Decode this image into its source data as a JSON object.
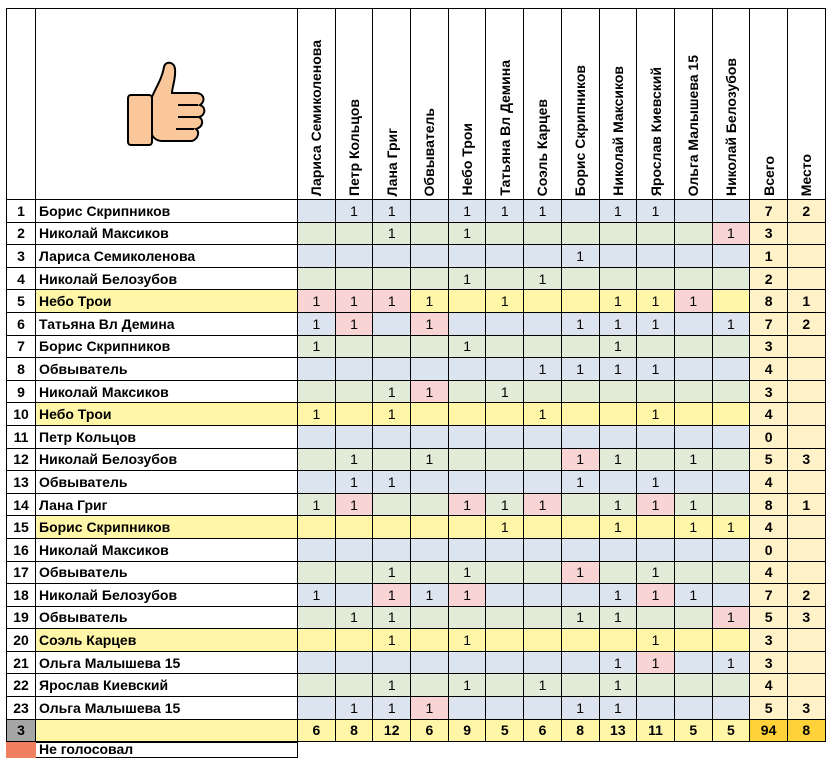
{
  "columns": [
    "Лариса Семиколенова",
    "Петр Кольцов",
    "Лана Григ",
    "Обвыватель",
    "Небо Трои",
    "Татьяна Вл Демина",
    "Соэль Карцев",
    "Борис Скрипников",
    "Николай Максиков",
    "Ярослав Киевский",
    "Ольга Малышева 15",
    "Николай Белозубов"
  ],
  "total_header": "Всего",
  "place_header": "Место",
  "thumb_icon": "thumbs-up-icon",
  "colors": {
    "blue": "#dce4f0",
    "green": "#e2ebd8",
    "yellow": "#fff6a8",
    "pink": "#f8d4d4",
    "orange": "#ffd23a",
    "legend": "#f08060"
  },
  "rows": [
    {
      "n": "1",
      "name": "Борис Скрипников",
      "band": "blue",
      "v": [
        "",
        "1",
        "1",
        "",
        "1",
        "1",
        "1",
        "",
        "1",
        "1",
        "",
        ""
      ],
      "pink": [],
      "total": "7",
      "place": "2"
    },
    {
      "n": "2",
      "name": "Николай Максиков",
      "band": "green",
      "v": [
        "",
        "",
        "1",
        "",
        "1",
        "",
        "",
        "",
        "",
        "",
        "",
        "1"
      ],
      "pink": [
        11
      ],
      "total": "3",
      "place": ""
    },
    {
      "n": "3",
      "name": "Лариса Семиколенова",
      "band": "blue",
      "v": [
        "",
        "",
        "",
        "",
        "",
        "",
        "",
        "1",
        "",
        "",
        "",
        ""
      ],
      "pink": [],
      "total": "1",
      "place": ""
    },
    {
      "n": "4",
      "name": "Николай Белозубов",
      "band": "green",
      "v": [
        "",
        "",
        "",
        "",
        "1",
        "",
        "1",
        "",
        "",
        "",
        "",
        ""
      ],
      "pink": [],
      "total": "2",
      "place": ""
    },
    {
      "n": "5",
      "name": "Небо Трои",
      "band": "yellow",
      "v": [
        "1",
        "1",
        "1",
        "1",
        "",
        "1",
        "",
        "",
        "1",
        "1",
        "1",
        ""
      ],
      "pink": [
        0,
        1,
        2,
        10
      ],
      "total": "8",
      "place": "1"
    },
    {
      "n": "6",
      "name": "Татьяна Вл Демина",
      "band": "blue",
      "v": [
        "1",
        "1",
        "",
        "1",
        "",
        "",
        "",
        "1",
        "1",
        "1",
        "",
        "1"
      ],
      "pink": [
        1,
        3
      ],
      "total": "7",
      "place": "2"
    },
    {
      "n": "7",
      "name": "Борис Скрипников",
      "band": "green",
      "v": [
        "1",
        "",
        "",
        "",
        "1",
        "",
        "",
        "",
        "1",
        "",
        "",
        ""
      ],
      "pink": [],
      "total": "3",
      "place": ""
    },
    {
      "n": "8",
      "name": "Обвыватель",
      "band": "blue",
      "v": [
        "",
        "",
        "",
        "",
        "",
        "",
        "1",
        "1",
        "1",
        "1",
        "",
        ""
      ],
      "pink": [],
      "total": "4",
      "place": ""
    },
    {
      "n": "9",
      "name": "Николай Максиков",
      "band": "green",
      "v": [
        "",
        "",
        "1",
        "1",
        "",
        "1",
        "",
        "",
        "",
        "",
        "",
        ""
      ],
      "pink": [
        3
      ],
      "total": "3",
      "place": ""
    },
    {
      "n": "10",
      "name": "Небо Трои",
      "band": "yellow",
      "v": [
        "1",
        "",
        "1",
        "",
        "",
        "",
        "1",
        "",
        "",
        "1",
        "",
        ""
      ],
      "pink": [],
      "total": "4",
      "place": ""
    },
    {
      "n": "11",
      "name": "Петр Кольцов",
      "band": "blue",
      "v": [
        "",
        "",
        "",
        "",
        "",
        "",
        "",
        "",
        "",
        "",
        "",
        ""
      ],
      "pink": [],
      "total": "0",
      "place": ""
    },
    {
      "n": "12",
      "name": "Николай Белозубов",
      "band": "green",
      "v": [
        "",
        "1",
        "",
        "1",
        "",
        "",
        "",
        "1",
        "1",
        "",
        "1",
        ""
      ],
      "pink": [
        7
      ],
      "total": "5",
      "place": "3"
    },
    {
      "n": "13",
      "name": "Обвыватель",
      "band": "blue",
      "v": [
        "",
        "1",
        "1",
        "",
        "",
        "",
        "",
        "1",
        "",
        "1",
        "",
        ""
      ],
      "pink": [],
      "total": "4",
      "place": ""
    },
    {
      "n": "14",
      "name": "Лана Григ",
      "band": "green",
      "v": [
        "1",
        "1",
        "",
        "",
        "1",
        "1",
        "1",
        "",
        "1",
        "1",
        "1",
        ""
      ],
      "pink": [
        1,
        4,
        6,
        9
      ],
      "total": "8",
      "place": "1"
    },
    {
      "n": "15",
      "name": "Борис Скрипников",
      "band": "yellow",
      "v": [
        "",
        "",
        "",
        "",
        "",
        "1",
        "",
        "",
        "1",
        "",
        "1",
        "1"
      ],
      "pink": [],
      "total": "4",
      "place": ""
    },
    {
      "n": "16",
      "name": "Николай Максиков",
      "band": "blue",
      "v": [
        "",
        "",
        "",
        "",
        "",
        "",
        "",
        "",
        "",
        "",
        "",
        ""
      ],
      "pink": [],
      "total": "0",
      "place": ""
    },
    {
      "n": "17",
      "name": "Обвыватель",
      "band": "green",
      "v": [
        "",
        "",
        "1",
        "",
        "1",
        "",
        "",
        "1",
        "",
        "1",
        "",
        ""
      ],
      "pink": [
        7
      ],
      "total": "4",
      "place": ""
    },
    {
      "n": "18",
      "name": "Николай Белозубов",
      "band": "blue",
      "v": [
        "1",
        "",
        "1",
        "1",
        "1",
        "",
        "",
        "",
        "1",
        "1",
        "1",
        ""
      ],
      "pink": [
        2,
        4,
        9
      ],
      "total": "7",
      "place": "2"
    },
    {
      "n": "19",
      "name": "Обвыватель",
      "band": "green",
      "v": [
        "",
        "1",
        "1",
        "",
        "",
        "",
        "",
        "1",
        "1",
        "",
        "",
        "1"
      ],
      "pink": [
        11
      ],
      "total": "5",
      "place": "3"
    },
    {
      "n": "20",
      "name": "Соэль Карцев",
      "band": "yellow",
      "v": [
        "",
        "",
        "1",
        "",
        "1",
        "",
        "",
        "",
        "",
        "1",
        "",
        ""
      ],
      "pink": [],
      "total": "3",
      "place": ""
    },
    {
      "n": "21",
      "name": "Ольга Малышева 15",
      "band": "blue",
      "v": [
        "",
        "",
        "",
        "",
        "",
        "",
        "",
        "",
        "1",
        "1",
        "",
        "1"
      ],
      "pink": [
        9
      ],
      "total": "3",
      "place": ""
    },
    {
      "n": "22",
      "name": "Ярослав Киевский",
      "band": "green",
      "v": [
        "",
        "",
        "1",
        "",
        "1",
        "",
        "1",
        "",
        "1",
        "",
        "",
        ""
      ],
      "pink": [],
      "total": "4",
      "place": ""
    },
    {
      "n": "23",
      "name": "Ольга Малышева 15",
      "band": "blue",
      "v": [
        "",
        "1",
        "1",
        "1",
        "",
        "",
        "",
        "1",
        "1",
        "",
        "",
        ""
      ],
      "pink": [
        3
      ],
      "total": "5",
      "place": "3"
    }
  ],
  "summary": {
    "n": "3",
    "v": [
      "6",
      "8",
      "12",
      "6",
      "9",
      "5",
      "6",
      "8",
      "13",
      "11",
      "5",
      "5"
    ],
    "total": "94",
    "place": "8"
  },
  "legend_label": "Не голосовал"
}
